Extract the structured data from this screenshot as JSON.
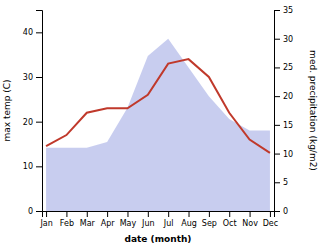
{
  "chart_data": {
    "type": "line",
    "xlabel": "date (month)",
    "ylabel": "max temp (C)",
    "y2label": "med. precipitation (kg/m2)",
    "categories": [
      "Jan",
      "Feb",
      "Mar",
      "Apr",
      "May",
      "Jun",
      "Jul",
      "Aug",
      "Sep",
      "Oct",
      "Nov",
      "Dec"
    ],
    "series": [
      {
        "type": "area",
        "axis": "y2",
        "color": "#b0b8e8",
        "values": [
          11,
          11,
          11,
          12,
          18,
          27,
          30,
          25,
          20,
          16,
          14,
          14
        ]
      },
      {
        "type": "line",
        "color": "#c0392b",
        "values": [
          14.5,
          17,
          22,
          23,
          23,
          26,
          33,
          34,
          30,
          22,
          16,
          13
        ]
      }
    ],
    "ylim": [
      0,
      45
    ],
    "yticks": [
      0,
      10,
      20,
      30,
      40
    ],
    "y2lim": [
      0,
      35
    ],
    "y2ticks": [
      0,
      5,
      10,
      15,
      20,
      25,
      30,
      35
    ]
  }
}
